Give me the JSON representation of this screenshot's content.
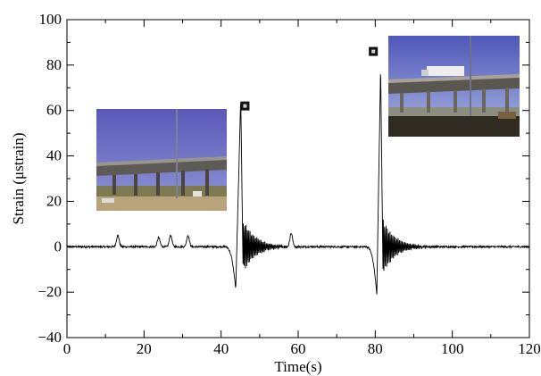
{
  "chart_data": {
    "type": "line",
    "title": "",
    "xlabel": "Time(s)",
    "ylabel": "Strain (μstrain)",
    "xlim": [
      0,
      120
    ],
    "ylim": [
      -40,
      100
    ],
    "x_ticks": [
      "0",
      "20",
      "40",
      "60",
      "80",
      "100",
      "120"
    ],
    "y_ticks": [
      "−40",
      "−20",
      "0",
      "20",
      "40",
      "60",
      "80",
      "100"
    ],
    "grid": false,
    "series": [
      {
        "color": "#000000",
        "peaks": [
          {
            "x": 13.2,
            "y": 5
          },
          {
            "x": 23.8,
            "y": 4
          },
          {
            "x": 26.9,
            "y": 5
          },
          {
            "x": 31.4,
            "y": 5
          },
          {
            "x": 45.1,
            "y": 66
          },
          {
            "x": 58.2,
            "y": 6
          },
          {
            "x": 81.4,
            "y": 80
          }
        ],
        "troughs": [
          {
            "x": 43.8,
            "y": -19
          },
          {
            "x": 80.4,
            "y": -21
          }
        ]
      }
    ],
    "markers": [
      {
        "x": 46.2,
        "y": 62
      },
      {
        "x": 79.5,
        "y": 86
      }
    ],
    "photos": [
      {
        "name": "photo-bridge-1",
        "depicts": "overpass-sky"
      },
      {
        "name": "photo-bridge-2",
        "depicts": "overpass-truck"
      }
    ]
  }
}
